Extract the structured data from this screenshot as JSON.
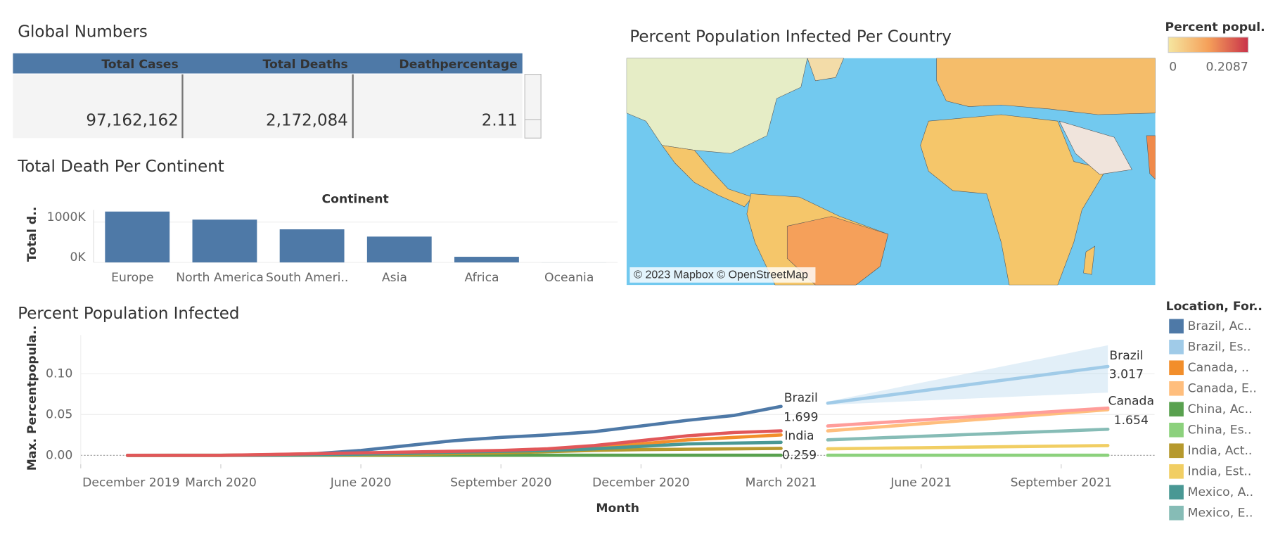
{
  "global_numbers": {
    "title": "Global Numbers",
    "headers": [
      "Total Cases",
      "Total Deaths",
      "Deathpercentage"
    ],
    "rows": [
      [
        "97,162,162",
        "2,172,084",
        "2.11"
      ]
    ]
  },
  "map": {
    "title": "Percent Population Infected Per Country",
    "legend_title": "Percent popul..",
    "legend_range": [
      0,
      0.2087
    ],
    "attribution": "© 2023 Mapbox © OpenStreetMap"
  },
  "chart_data": [
    {
      "type": "bar",
      "title": "Total Death Per Continent",
      "x_label": "Continent",
      "y_label": "Total d..",
      "categories": [
        "Europe",
        "North America",
        "South Ameri..",
        "Asia",
        "Africa",
        "Oceania"
      ],
      "values": [
        1260000,
        1060000,
        820000,
        640000,
        140000,
        1000
      ],
      "color": "#4e79a7",
      "ylim": [
        0,
        1300000
      ],
      "yticks": [
        {
          "value": 0,
          "label": "0K"
        },
        {
          "value": 1000000,
          "label": "1000K"
        }
      ],
      "grid": true
    },
    {
      "type": "line",
      "title": "Percent Population Infected",
      "x_label": "Month",
      "y_label": "Max. Percentpopula..",
      "xlim": [
        "2019-12",
        "2021-11"
      ],
      "xticks": [
        {
          "value": "2019-12",
          "label": "December 2019"
        },
        {
          "value": "2020-03",
          "label": "March 2020"
        },
        {
          "value": "2020-06",
          "label": "June 2020"
        },
        {
          "value": "2020-09",
          "label": "September 2020"
        },
        {
          "value": "2020-12",
          "label": "December 2020"
        },
        {
          "value": "2021-03",
          "label": "March 2021"
        },
        {
          "value": "2021-06",
          "label": "June 2021"
        },
        {
          "value": "2021-09",
          "label": "September 2021"
        }
      ],
      "ylim": [
        -0.011,
        0.1475
      ],
      "yticks": [
        {
          "value": 0,
          "label": "0.00"
        },
        {
          "value": 0.05,
          "label": "0.05"
        },
        {
          "value": 0.1,
          "label": "0.10"
        }
      ],
      "grid": true,
      "legend": "right",
      "legend_title": "Location, For..",
      "series": [
        {
          "name": "Brazil, Ac..",
          "color": "#4e79a7",
          "x": [
            "2020-01",
            "2020-02",
            "2020-03",
            "2020-04",
            "2020-05",
            "2020-06",
            "2020-07",
            "2020-08",
            "2020-09",
            "2020-10",
            "2020-11",
            "2020-12",
            "2021-01",
            "2021-02",
            "2021-03"
          ],
          "values": [
            0,
            0,
            0,
            0.0003,
            0.002,
            0.006,
            0.012,
            0.018,
            0.022,
            0.025,
            0.029,
            0.036,
            0.043,
            0.049,
            0.06
          ]
        },
        {
          "name": "Brazil, Es..",
          "color": "#a0cbe8",
          "x": [
            "2021-04",
            "2021-05",
            "2021-06",
            "2021-07",
            "2021-08",
            "2021-09",
            "2021-10"
          ],
          "values": [
            0.064,
            0.0715,
            0.079,
            0.0865,
            0.094,
            0.1015,
            0.109
          ],
          "lower": [
            0.062,
            0.0645,
            0.067,
            0.0695,
            0.072,
            0.0745,
            0.077
          ],
          "upper": [
            0.066,
            0.0775,
            0.089,
            0.1005,
            0.112,
            0.1235,
            0.135
          ]
        },
        {
          "name": "Canada, ..",
          "color": "#f28e2b",
          "x": [
            "2020-01",
            "2020-02",
            "2020-03",
            "2020-04",
            "2020-05",
            "2020-06",
            "2020-07",
            "2020-08",
            "2020-09",
            "2020-10",
            "2020-11",
            "2020-12",
            "2021-01",
            "2021-02",
            "2021-03"
          ],
          "values": [
            0,
            0,
            0,
            0.0008,
            0.002,
            0.0027,
            0.003,
            0.0033,
            0.004,
            0.006,
            0.009,
            0.014,
            0.019,
            0.022,
            0.025
          ]
        },
        {
          "name": "Canada, E..",
          "color": "#ffbe7d",
          "x": [
            "2021-04",
            "2021-05",
            "2021-06",
            "2021-07",
            "2021-08",
            "2021-09",
            "2021-10"
          ],
          "values": [
            0.03,
            0.0343,
            0.0387,
            0.043,
            0.0473,
            0.0517,
            0.056
          ]
        },
        {
          "name": "China, Ac..",
          "color": "#59a14f",
          "x": [
            "2020-01",
            "2020-02",
            "2020-03",
            "2020-04",
            "2020-05",
            "2020-06",
            "2020-07",
            "2020-08",
            "2020-09",
            "2020-10",
            "2020-11",
            "2020-12",
            "2021-01",
            "2021-02",
            "2021-03"
          ],
          "values": [
            0,
            0.0001,
            0.0001,
            0.0001,
            0.0001,
            0.0001,
            0.0001,
            0.0001,
            0.0001,
            0.0001,
            0.0001,
            0.0001,
            0.0001,
            0.0001,
            0.0001
          ]
        },
        {
          "name": "China, Es..",
          "color": "#8cd17d",
          "x": [
            "2021-04",
            "2021-05",
            "2021-06",
            "2021-07",
            "2021-08",
            "2021-09",
            "2021-10"
          ],
          "values": [
            0.0001,
            0.0001,
            0.0001,
            0.0001,
            0.0001,
            0.0001,
            0.0001
          ]
        },
        {
          "name": "India, Act..",
          "color": "#b6992d",
          "x": [
            "2020-01",
            "2020-02",
            "2020-03",
            "2020-04",
            "2020-05",
            "2020-06",
            "2020-07",
            "2020-08",
            "2020-09",
            "2020-10",
            "2020-11",
            "2020-12",
            "2021-01",
            "2021-02",
            "2021-03"
          ],
          "values": [
            0,
            0,
            0,
            0,
            0.0001,
            0.0004,
            0.001,
            0.002,
            0.003,
            0.0045,
            0.006,
            0.007,
            0.0075,
            0.008,
            0.0085
          ]
        },
        {
          "name": "India, Est..",
          "color": "#f1ce63",
          "x": [
            "2021-04",
            "2021-05",
            "2021-06",
            "2021-07",
            "2021-08",
            "2021-09",
            "2021-10"
          ],
          "values": [
            0.008,
            0.0087,
            0.0093,
            0.01,
            0.0107,
            0.0113,
            0.012
          ]
        },
        {
          "name": "Mexico, A..",
          "color": "#499894",
          "x": [
            "2020-01",
            "2020-02",
            "2020-03",
            "2020-04",
            "2020-05",
            "2020-06",
            "2020-07",
            "2020-08",
            "2020-09",
            "2020-10",
            "2020-11",
            "2020-12",
            "2021-01",
            "2021-02",
            "2021-03"
          ],
          "values": [
            0,
            0,
            0,
            0.0001,
            0.0006,
            0.0015,
            0.0025,
            0.004,
            0.005,
            0.006,
            0.008,
            0.011,
            0.014,
            0.015,
            0.016
          ]
        },
        {
          "name": "Mexico, E..",
          "color": "#86bcb6",
          "x": [
            "2021-04",
            "2021-05",
            "2021-06",
            "2021-07",
            "2021-08",
            "2021-09",
            "2021-10"
          ],
          "values": [
            0.019,
            0.0212,
            0.0233,
            0.0255,
            0.0277,
            0.0298,
            0.032
          ]
        },
        {
          "color": "#e15759",
          "x": [
            "2020-01",
            "2020-02",
            "2020-03",
            "2020-04",
            "2020-05",
            "2020-06",
            "2020-07",
            "2020-08",
            "2020-09",
            "2020-10",
            "2020-11",
            "2020-12",
            "2021-01",
            "2021-02",
            "2021-03"
          ],
          "values": [
            0,
            0,
            0,
            0.001,
            0.002,
            0.003,
            0.004,
            0.005,
            0.006,
            0.008,
            0.012,
            0.018,
            0.024,
            0.028,
            0.03
          ]
        },
        {
          "color": "#ff9d9a",
          "x": [
            "2021-04",
            "2021-05",
            "2021-06",
            "2021-07",
            "2021-08",
            "2021-09",
            "2021-10"
          ],
          "values": [
            0.036,
            0.0397,
            0.0433,
            0.047,
            0.0507,
            0.0543,
            0.058
          ]
        }
      ],
      "annotations": [
        "Brazil",
        "1.699",
        "India",
        "0.259",
        "Brazil",
        "3.017",
        "Canada",
        "1.654"
      ]
    }
  ]
}
